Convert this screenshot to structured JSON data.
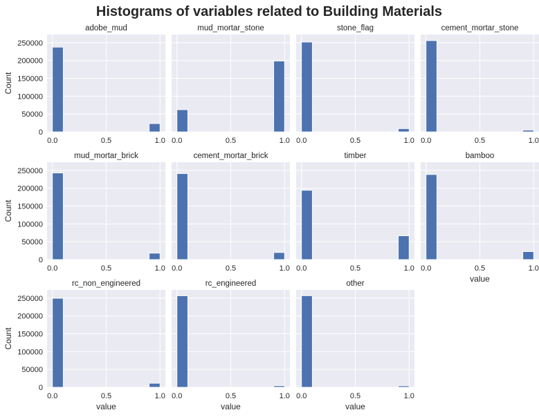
{
  "chart_data": {
    "type": "bar",
    "title": "Histograms of variables related to Building Materials",
    "xlabel": "value",
    "ylabel": "Count",
    "xlim": [
      -0.05,
      1.05
    ],
    "ylim": [
      0,
      273000
    ],
    "xticks": [
      "0.0",
      "0.5",
      "1.0"
    ],
    "yticks": [
      "0",
      "50000",
      "100000",
      "150000",
      "200000",
      "250000"
    ],
    "bins": 10,
    "grid": true,
    "background_color": "#EAEAF2",
    "bar_color": "#4C72B0",
    "panels": [
      {
        "name": "adobe_mud",
        "bins": [
          [
            0.0,
            0.1,
            237500
          ],
          [
            0.9,
            1.0,
            23100
          ]
        ]
      },
      {
        "name": "mud_mortar_stone",
        "bins": [
          [
            0.0,
            0.1,
            62000
          ],
          [
            0.9,
            1.0,
            198600
          ]
        ]
      },
      {
        "name": "stone_flag",
        "bins": [
          [
            0.0,
            0.1,
            251700
          ],
          [
            0.9,
            1.0,
            8900
          ]
        ]
      },
      {
        "name": "cement_mortar_stone",
        "bins": [
          [
            0.0,
            0.1,
            255800
          ],
          [
            0.9,
            1.0,
            4800
          ]
        ]
      },
      {
        "name": "mud_mortar_brick",
        "bins": [
          [
            0.0,
            0.1,
            242800
          ],
          [
            0.9,
            1.0,
            17800
          ]
        ]
      },
      {
        "name": "cement_mortar_brick",
        "bins": [
          [
            0.0,
            0.1,
            241000
          ],
          [
            0.9,
            1.0,
            19600
          ]
        ]
      },
      {
        "name": "timber",
        "bins": [
          [
            0.0,
            0.1,
            194100
          ],
          [
            0.9,
            1.0,
            66500
          ]
        ]
      },
      {
        "name": "bamboo",
        "bins": [
          [
            0.0,
            0.1,
            238400
          ],
          [
            0.9,
            1.0,
            22200
          ]
        ]
      },
      {
        "name": "rc_non_engineered",
        "bins": [
          [
            0.0,
            0.1,
            249500
          ],
          [
            0.9,
            1.0,
            11100
          ]
        ]
      },
      {
        "name": "rc_engineered",
        "bins": [
          [
            0.0,
            0.1,
            256500
          ],
          [
            0.9,
            1.0,
            4100
          ]
        ]
      },
      {
        "name": "other",
        "bins": [
          [
            0.0,
            0.1,
            256700
          ],
          [
            0.9,
            1.0,
            3900
          ]
        ]
      }
    ]
  }
}
